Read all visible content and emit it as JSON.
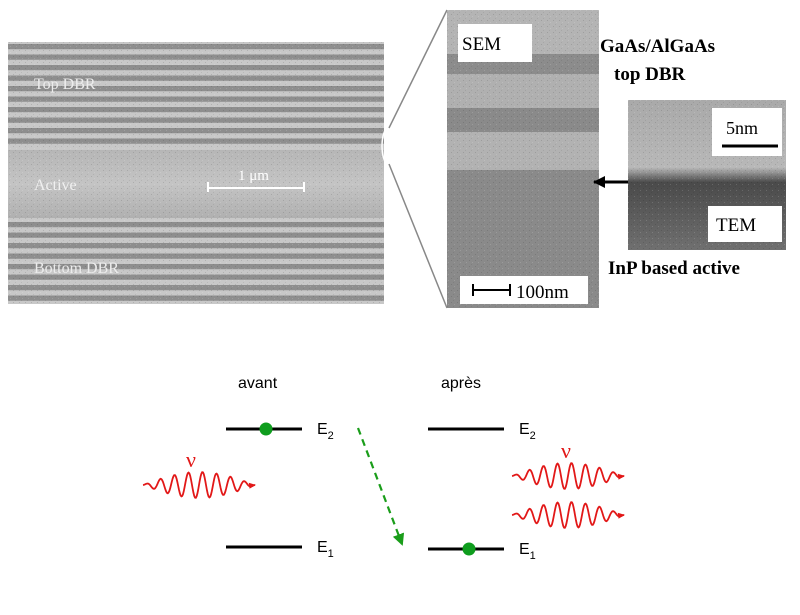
{
  "sem_left": {
    "top_label": "Top DBR",
    "active_label": "Active",
    "bottom_label": "Bottom DBR",
    "scale_label": "1 μm"
  },
  "sem_zoom": {
    "sem_label": "SEM",
    "mirror_label_line1": "GaAs/AlGaAs",
    "mirror_label_line2": "top DBR",
    "scale_label": "100nm"
  },
  "tem_inset": {
    "scale_label": "5nm",
    "tem_label": "TEM",
    "active_caption": "InP based active"
  },
  "energy_diagram": {
    "before_label": "avant",
    "after_label": "après",
    "e2_label": "E",
    "e2_sub": "2",
    "e1_label": "E",
    "e1_sub": "1",
    "photon_symbol": "ν",
    "colors": {
      "photon": "#e21818",
      "electron": "#0f9d1e",
      "transition": "#1a9d1a",
      "level": "#000000"
    }
  }
}
